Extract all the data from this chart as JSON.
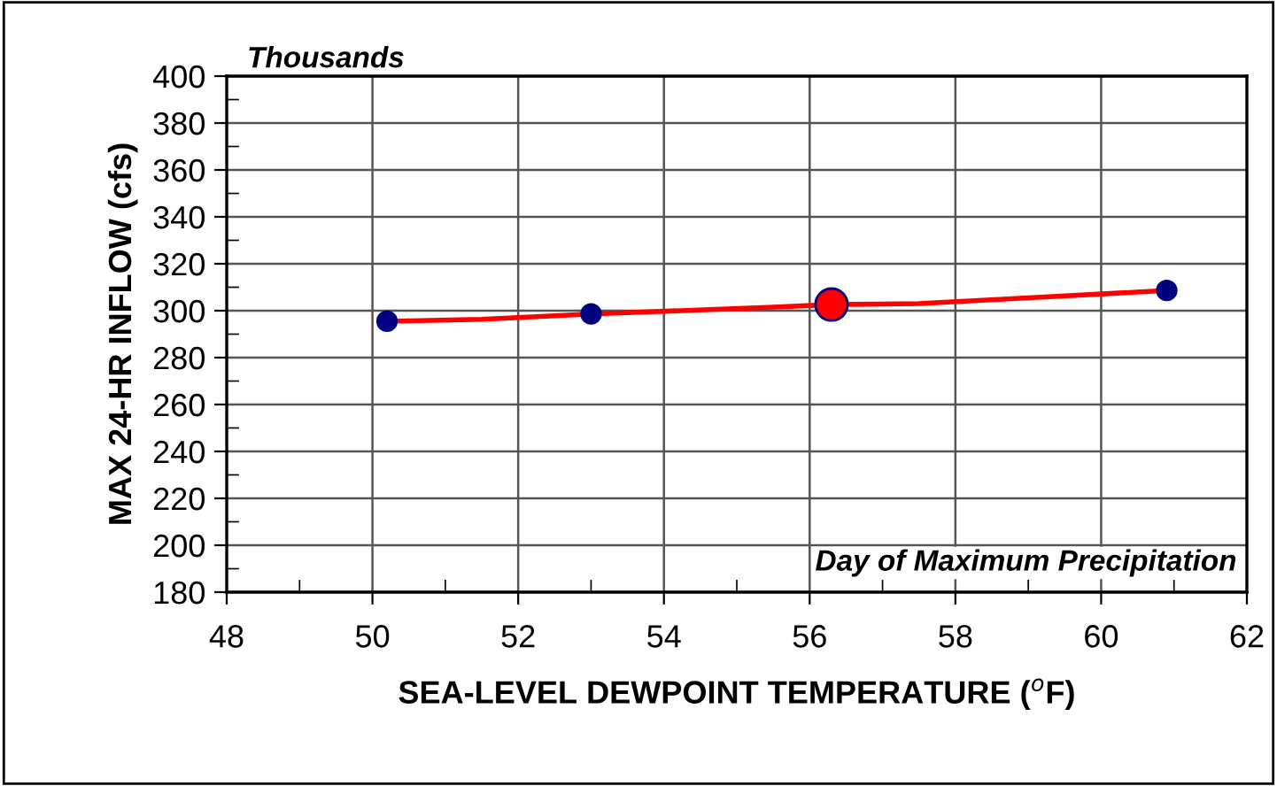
{
  "chart_data": {
    "type": "scatter",
    "xlabel": "SEA-LEVEL DEWPOINT TEMPERATURE ($^{o}$F)",
    "ylabel": "MAX 24-HR INFLOW (cfs)",
    "annotations": [
      "Thousands",
      "Day of Maximum Precipitation"
    ],
    "series": [
      {
        "type": "line",
        "color": "#ff0000",
        "marker": "none",
        "line_style": "solid",
        "x": [
          50.2,
          51.5,
          53.0,
          55.5,
          56.3,
          57.5,
          59.0,
          60.9
        ],
        "values": [
          295.5,
          296.3,
          298.6,
          301.5,
          302.6,
          303.0,
          305.5,
          308.6
        ]
      },
      {
        "color": "#000080",
        "marker": "circle",
        "x": [
          50.2,
          53.0,
          60.9
        ],
        "values": [
          295.5,
          298.6,
          308.6
        ]
      },
      {
        "color": "#ff0000",
        "marker": "circle",
        "x": [
          56.3
        ],
        "values": [
          302.6
        ]
      }
    ],
    "xlim": [
      48,
      62
    ],
    "xticks": [
      48,
      50,
      52,
      54,
      56,
      58,
      60,
      62
    ],
    "ylim": [
      180,
      400
    ],
    "yticks": [
      180,
      200,
      220,
      240,
      260,
      280,
      300,
      320,
      340,
      360,
      380,
      400
    ],
    "grid": true
  }
}
